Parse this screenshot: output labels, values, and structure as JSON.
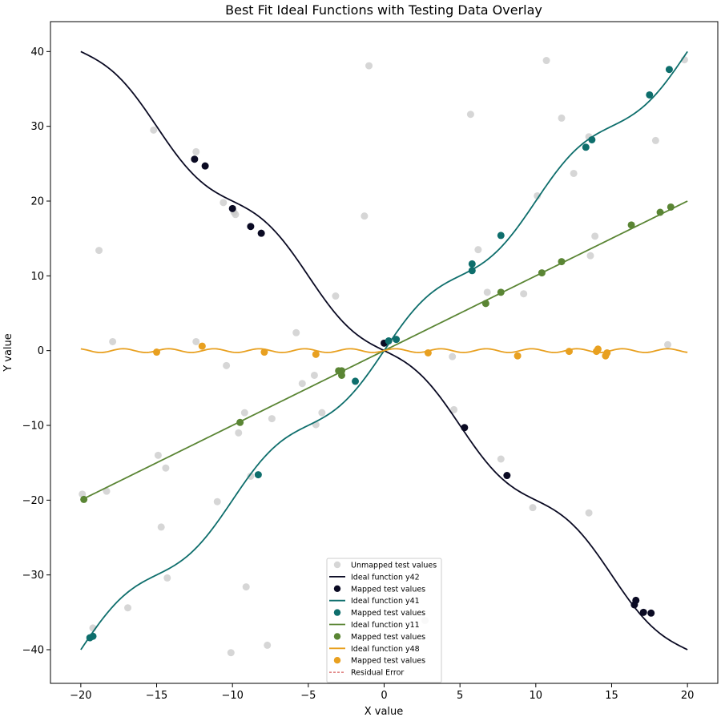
{
  "chart_data": {
    "type": "scatter",
    "title": "Best Fit Ideal Functions with Testing Data Overlay",
    "xlabel": "X value",
    "ylabel": "Y value",
    "xlim": [
      -22,
      22
    ],
    "ylim": [
      -44.5,
      44
    ],
    "xticks": [
      -20,
      -15,
      -10,
      -5,
      0,
      5,
      10,
      15,
      20
    ],
    "yticks": [
      -40,
      -30,
      -20,
      -10,
      0,
      10,
      20,
      30,
      40
    ],
    "grid": false,
    "legend_position": "lower center",
    "unmapped": {
      "name": "Unmapped test values",
      "color": "#c8c8c8",
      "points": [
        [
          -19.9,
          -19.2
        ],
        [
          -19.2,
          -37.1
        ],
        [
          -18.8,
          13.4
        ],
        [
          -18.3,
          -18.8
        ],
        [
          -17.9,
          1.2
        ],
        [
          -16.9,
          -34.4
        ],
        [
          -15.2,
          29.5
        ],
        [
          -14.9,
          -14.0
        ],
        [
          -14.7,
          -23.6
        ],
        [
          -14.4,
          -15.7
        ],
        [
          -14.3,
          -30.4
        ],
        [
          -12.4,
          26.6
        ],
        [
          -12.4,
          1.2
        ],
        [
          -11.0,
          -20.2
        ],
        [
          -10.6,
          19.8
        ],
        [
          -10.4,
          -2.0
        ],
        [
          -9.9,
          18.5
        ],
        [
          -9.8,
          18.2
        ],
        [
          -9.6,
          -11.0
        ],
        [
          -9.2,
          -8.3
        ],
        [
          -9.1,
          -31.6
        ],
        [
          -8.8,
          -16.8
        ],
        [
          -7.7,
          -39.4
        ],
        [
          -7.4,
          -9.1
        ],
        [
          -5.8,
          2.4
        ],
        [
          -5.4,
          -4.4
        ],
        [
          -4.6,
          -3.3
        ],
        [
          -4.5,
          -9.9
        ],
        [
          -4.1,
          -8.3
        ],
        [
          -3.2,
          7.3
        ],
        [
          -1.3,
          18.0
        ],
        [
          -1.0,
          38.1
        ],
        [
          -10.1,
          -40.4
        ],
        [
          2.7,
          -36.1
        ],
        [
          4.5,
          -0.8
        ],
        [
          4.6,
          -7.9
        ],
        [
          5.7,
          31.6
        ],
        [
          6.2,
          13.5
        ],
        [
          6.8,
          7.8
        ],
        [
          7.7,
          -14.5
        ],
        [
          9.2,
          7.6
        ],
        [
          9.8,
          -21.0
        ],
        [
          10.1,
          20.7
        ],
        [
          10.7,
          38.8
        ],
        [
          11.7,
          31.1
        ],
        [
          12.5,
          23.7
        ],
        [
          13.5,
          28.6
        ],
        [
          13.6,
          12.7
        ],
        [
          13.9,
          15.3
        ],
        [
          13.5,
          -21.7
        ],
        [
          17.9,
          28.1
        ],
        [
          18.7,
          0.8
        ],
        [
          19.8,
          38.9
        ]
      ]
    },
    "series": [
      {
        "name": "Ideal function y42",
        "mapped_name": "Mapped test values",
        "color": "#0a0a23",
        "function": "y42",
        "mapped": [
          [
            -12.5,
            25.6
          ],
          [
            -11.8,
            24.7
          ],
          [
            -10.0,
            19.0
          ],
          [
            -8.8,
            16.6
          ],
          [
            -8.1,
            15.7
          ],
          [
            0.0,
            1.0
          ],
          [
            5.3,
            -10.3
          ],
          [
            8.1,
            -16.7
          ],
          [
            16.6,
            -33.4
          ],
          [
            16.5,
            -34.0
          ],
          [
            17.1,
            -35.0
          ],
          [
            17.6,
            -35.1
          ]
        ]
      },
      {
        "name": "Ideal function y41",
        "mapped_name": "Mapped test values",
        "color": "#0e6e6c",
        "function": "y41",
        "mapped": [
          [
            -19.4,
            -38.4
          ],
          [
            -19.2,
            -38.2
          ],
          [
            -8.3,
            -16.6
          ],
          [
            -1.9,
            -4.1
          ],
          [
            0.3,
            1.3
          ],
          [
            0.8,
            1.5
          ],
          [
            5.8,
            10.7
          ],
          [
            5.8,
            11.6
          ],
          [
            7.7,
            15.4
          ],
          [
            13.3,
            27.2
          ],
          [
            13.7,
            28.2
          ],
          [
            17.5,
            34.2
          ],
          [
            18.8,
            37.6
          ]
        ]
      },
      {
        "name": "Ideal function y11",
        "mapped_name": "Mapped test values",
        "color": "#5a8534",
        "function": "y11",
        "mapped": [
          [
            -19.8,
            -19.9
          ],
          [
            -9.5,
            -9.6
          ],
          [
            -3.0,
            -2.7
          ],
          [
            -2.8,
            -2.7
          ],
          [
            -2.8,
            -3.3
          ],
          [
            6.7,
            6.3
          ],
          [
            7.7,
            7.8
          ],
          [
            10.4,
            10.4
          ],
          [
            11.7,
            11.9
          ],
          [
            16.3,
            16.8
          ],
          [
            18.2,
            18.5
          ],
          [
            18.9,
            19.2
          ]
        ]
      },
      {
        "name": "Ideal function y48",
        "mapped_name": "Mapped test values",
        "color": "#e8a020",
        "function": "y48",
        "mapped": [
          [
            -15.0,
            -0.2
          ],
          [
            -12.0,
            0.6
          ],
          [
            -7.9,
            -0.2
          ],
          [
            -4.5,
            -0.5
          ],
          [
            2.9,
            -0.3
          ],
          [
            8.8,
            -0.7
          ],
          [
            12.2,
            -0.1
          ],
          [
            14.0,
            -0.1
          ],
          [
            14.1,
            0.2
          ],
          [
            14.6,
            -0.7
          ],
          [
            14.7,
            -0.3
          ]
        ]
      }
    ],
    "residual": {
      "name": "Residual Error",
      "color": "#d04040"
    }
  }
}
